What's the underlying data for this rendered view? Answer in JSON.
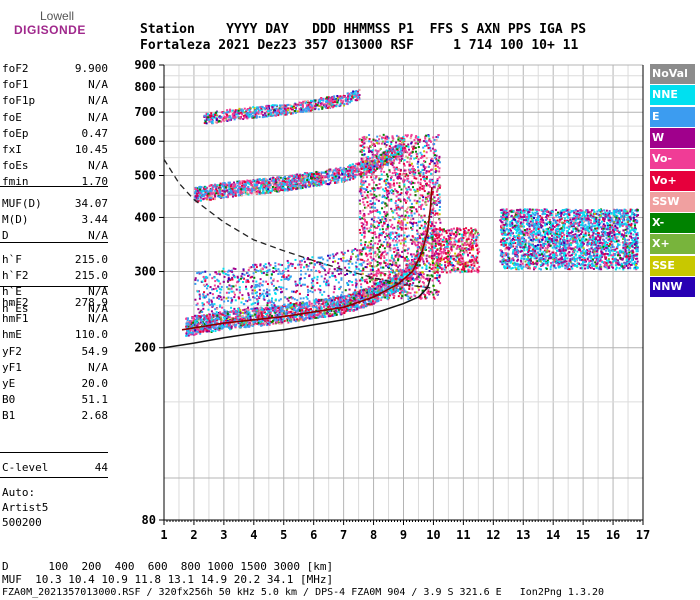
{
  "logo": {
    "line1": "Lowell",
    "line2": "DIGISONDE"
  },
  "header": {
    "line1": "Station    YYYY DAY   DDD HHMMSS P1  FFS S AXN PPS IGA PS",
    "line2": "Fortaleza 2021 Dez23 357 013000 RSF     1 714 100 10+ 11"
  },
  "params_group1": [
    {
      "name": "foF2",
      "value": "9.900"
    },
    {
      "name": "foF1",
      "value": "N/A"
    },
    {
      "name": "foF1p",
      "value": "N/A"
    },
    {
      "name": "foE",
      "value": "N/A"
    },
    {
      "name": "foEp",
      "value": "0.47"
    },
    {
      "name": "fxI",
      "value": "10.45"
    },
    {
      "name": "foEs",
      "value": "N/A"
    },
    {
      "name": "fmin",
      "value": "1.70"
    }
  ],
  "params_group2": [
    {
      "name": "MUF(D)",
      "value": "34.07"
    },
    {
      "name": "M(D)",
      "value": "3.44"
    },
    {
      "name": "D",
      "value": "N/A"
    }
  ],
  "params_group3": [
    {
      "name": "h`F",
      "value": "215.0"
    },
    {
      "name": "h`F2",
      "value": "215.0"
    },
    {
      "name": "h`E",
      "value": "N/A"
    },
    {
      "name": "h`Es",
      "value": "N/A"
    }
  ],
  "params_group4": [
    {
      "name": "hmF2",
      "value": "278.9"
    },
    {
      "name": "hmF1",
      "value": "N/A"
    },
    {
      "name": "hmE",
      "value": "110.0"
    },
    {
      "name": "yF2",
      "value": "54.9"
    },
    {
      "name": "yF1",
      "value": "N/A"
    },
    {
      "name": "yE",
      "value": "20.0"
    },
    {
      "name": "B0",
      "value": "51.1"
    },
    {
      "name": "B1",
      "value": "2.68"
    }
  ],
  "params_group5": [
    {
      "name": "C-level",
      "value": "44"
    }
  ],
  "auto_notes": [
    "Auto:",
    "Artist5",
    "500200"
  ],
  "legend": [
    {
      "label": "NoVal",
      "color": "#8c8c8c"
    },
    {
      "label": "NNE",
      "color": "#00e0f0"
    },
    {
      "label": "E",
      "color": "#3c9cf0"
    },
    {
      "label": "W",
      "color": "#a0008c"
    },
    {
      "label": "Vo-",
      "color": "#f03c96"
    },
    {
      "label": "Vo+",
      "color": "#e6003c"
    },
    {
      "label": "SSW",
      "color": "#f0a0a0"
    },
    {
      "label": "X-",
      "color": "#008200"
    },
    {
      "label": "X+",
      "color": "#78b43c"
    },
    {
      "label": "SSE",
      "color": "#c8c800"
    },
    {
      "label": "NNW",
      "color": "#2800b4"
    }
  ],
  "chart_data": {
    "type": "scatter",
    "xlim": [
      1,
      17
    ],
    "ylim": [
      80,
      900
    ],
    "y_log_scale": true,
    "x_ticks": [
      "1",
      "2",
      "3",
      "4",
      "5",
      "6",
      "7",
      "8",
      "9",
      "10",
      "11",
      "12",
      "13",
      "14",
      "15",
      "16",
      "17"
    ],
    "y_ticks": [
      {
        "value": 900,
        "label": "900"
      },
      {
        "value": 800,
        "label": "800"
      },
      {
        "value": 700,
        "label": "700"
      },
      {
        "value": 600,
        "label": "600"
      },
      {
        "value": 500,
        "label": "500"
      },
      {
        "value": 400,
        "label": "400"
      },
      {
        "value": 300,
        "label": "300"
      },
      {
        "value": 200,
        "label": "200"
      },
      {
        "value": 80,
        "label": "80"
      }
    ],
    "grid": true,
    "profile_curve": [
      [
        1.0,
        200
      ],
      [
        2,
        205
      ],
      [
        3,
        211
      ],
      [
        4,
        216
      ],
      [
        5,
        220
      ],
      [
        6,
        226
      ],
      [
        7,
        232
      ],
      [
        8,
        240
      ],
      [
        9,
        253
      ],
      [
        9.5,
        262
      ],
      [
        9.8,
        275
      ],
      [
        9.9,
        290
      ]
    ],
    "trace_curve": [
      [
        1.6,
        220
      ],
      [
        3,
        228
      ],
      [
        5,
        236
      ],
      [
        7,
        248
      ],
      [
        8,
        262
      ],
      [
        8.8,
        280
      ],
      [
        9.3,
        300
      ],
      [
        9.6,
        330
      ],
      [
        9.8,
        370
      ],
      [
        9.9,
        420
      ],
      [
        9.95,
        470
      ]
    ],
    "dashed_curve": [
      [
        1,
        545
      ],
      [
        1.5,
        480
      ],
      [
        2,
        440
      ],
      [
        3,
        390
      ],
      [
        4,
        355
      ],
      [
        5,
        335
      ],
      [
        6,
        318
      ],
      [
        7,
        303
      ],
      [
        8,
        290
      ],
      [
        9,
        280
      ],
      [
        9.9,
        275
      ]
    ],
    "echo_bands": [
      {
        "name": "F-trace",
        "x": [
          1.7,
          9.6
        ],
        "h": [
          220,
          300
        ]
      },
      {
        "name": "F-2hop",
        "x": [
          2,
          9
        ],
        "h": [
          440,
          560
        ]
      },
      {
        "name": "F-3hop",
        "x": [
          2.3,
          7.5
        ],
        "h": [
          660,
          790
        ]
      },
      {
        "name": "Spread-F",
        "x": [
          7.5,
          10.2
        ],
        "h": [
          280,
          600
        ]
      },
      {
        "name": "Satellite",
        "x": [
          12.2,
          16.8
        ],
        "h": [
          305,
          420
        ]
      }
    ]
  },
  "footer": {
    "line1": "D      100  200  400  600  800 1000 1500 3000 [km]",
    "line2": "MUF  10.3 10.4 10.9 11.8 13.1 14.9 20.2 34.1 [MHz]",
    "line3": "FZA0M_2021357013000.RSF / 320fx256h 50 kHz 5.0 km / DPS-4 FZA0M 904 / 3.9 S 321.6 E   Ion2Png 1.3.20"
  }
}
